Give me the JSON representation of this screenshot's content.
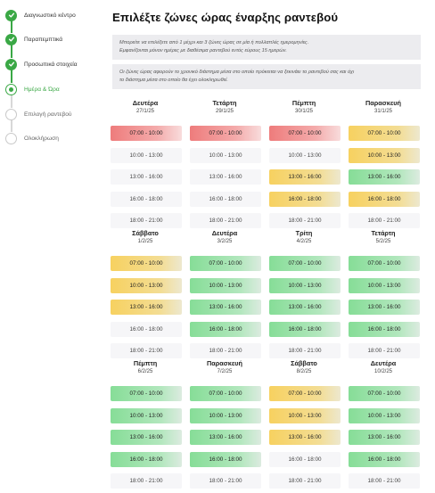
{
  "stepper": {
    "steps": [
      {
        "label": "Διαγνωστικό κέντρο",
        "state": "done"
      },
      {
        "label": "Παραπεμπτικά",
        "state": "done"
      },
      {
        "label": "Προσωπικά στοιχεία",
        "state": "done"
      },
      {
        "label": "Ημέρα & Ώρα",
        "state": "current"
      },
      {
        "label": "Επιλογή ραντεβού",
        "state": "todo"
      },
      {
        "label": "Ολοκλήρωση",
        "state": "todo"
      }
    ]
  },
  "page": {
    "title": "Επιλέξτε ζώνες ώρας έναρξης ραντεβού",
    "info1": [
      "Μπορείτε να επιλέξετε από 1 μέχρι και 3 ζώνες ώρας σε μία ή πολλαπλές ημερομηνίες.",
      "Εμφανίζονται μόνον ημέρες με διαθέσιμα ραντεβού εντός εύρους 15 ημερών."
    ],
    "info2": [
      "Οι ζώνες ώρας αφορούν το χρονικό διάστημα μέσα στο οποίο πρόκειται να ξεκινάει το ραντεβού σας και όχι",
      "το διάστημα μέσα στο οποίο θα έχει ολοκληρωθεί."
    ]
  },
  "status_colors": {
    "red": "#ee7c7c",
    "yellow": "#f7d160",
    "green": "#86dd97",
    "gray": "#f6f6f8",
    "accent": "#3aa845"
  },
  "days": [
    {
      "day": "Δευτέρα",
      "date": "27/1/25",
      "slots": [
        {
          "time": "07:00 - 10:00",
          "status": "red"
        },
        {
          "time": "10:00 - 13:00",
          "status": "gray"
        },
        {
          "time": "13:00 - 16:00",
          "status": "gray"
        },
        {
          "time": "16:00 - 18:00",
          "status": "gray"
        },
        {
          "time": "18:00 - 21:00",
          "status": "gray"
        }
      ]
    },
    {
      "day": "Τετάρτη",
      "date": "29/1/25",
      "slots": [
        {
          "time": "07:00 - 10:00",
          "status": "red"
        },
        {
          "time": "10:00 - 13:00",
          "status": "gray"
        },
        {
          "time": "13:00 - 16:00",
          "status": "gray"
        },
        {
          "time": "16:00 - 18:00",
          "status": "gray"
        },
        {
          "time": "18:00 - 21:00",
          "status": "gray"
        }
      ]
    },
    {
      "day": "Πέμπτη",
      "date": "30/1/25",
      "slots": [
        {
          "time": "07:00 - 10:00",
          "status": "red"
        },
        {
          "time": "10:00 - 13:00",
          "status": "gray"
        },
        {
          "time": "13:00 - 16:00",
          "status": "yellow"
        },
        {
          "time": "16:00 - 18:00",
          "status": "yellow"
        },
        {
          "time": "18:00 - 21:00",
          "status": "gray"
        }
      ]
    },
    {
      "day": "Παρασκευή",
      "date": "31/1/25",
      "slots": [
        {
          "time": "07:00 - 10:00",
          "status": "yellow"
        },
        {
          "time": "10:00 - 13:00",
          "status": "yellow"
        },
        {
          "time": "13:00 - 16:00",
          "status": "green"
        },
        {
          "time": "16:00 - 18:00",
          "status": "yellow"
        },
        {
          "time": "18:00 - 21:00",
          "status": "gray"
        }
      ]
    },
    {
      "day": "Σάββατο",
      "date": "1/2/25",
      "slots": [
        {
          "time": "07:00 - 10:00",
          "status": "yellow"
        },
        {
          "time": "10:00 - 13:00",
          "status": "yellow"
        },
        {
          "time": "13:00 - 16:00",
          "status": "yellow"
        },
        {
          "time": "16:00 - 18:00",
          "status": "gray"
        },
        {
          "time": "18:00 - 21:00",
          "status": "gray"
        }
      ]
    },
    {
      "day": "Δευτέρα",
      "date": "3/2/25",
      "slots": [
        {
          "time": "07:00 - 10:00",
          "status": "green"
        },
        {
          "time": "10:00 - 13:00",
          "status": "green"
        },
        {
          "time": "13:00 - 16:00",
          "status": "green"
        },
        {
          "time": "16:00 - 18:00",
          "status": "green"
        },
        {
          "time": "18:00 - 21:00",
          "status": "gray"
        }
      ]
    },
    {
      "day": "Τρίτη",
      "date": "4/2/25",
      "slots": [
        {
          "time": "07:00 - 10:00",
          "status": "green"
        },
        {
          "time": "10:00 - 13:00",
          "status": "green"
        },
        {
          "time": "13:00 - 16:00",
          "status": "green"
        },
        {
          "time": "16:00 - 18:00",
          "status": "green"
        },
        {
          "time": "18:00 - 21:00",
          "status": "gray"
        }
      ]
    },
    {
      "day": "Τετάρτη",
      "date": "5/2/25",
      "slots": [
        {
          "time": "07:00 - 10:00",
          "status": "green"
        },
        {
          "time": "10:00 - 13:00",
          "status": "green"
        },
        {
          "time": "13:00 - 16:00",
          "status": "green"
        },
        {
          "time": "16:00 - 18:00",
          "status": "green"
        },
        {
          "time": "18:00 - 21:00",
          "status": "gray"
        }
      ]
    },
    {
      "day": "Πέμπτη",
      "date": "6/2/25",
      "slots": [
        {
          "time": "07:00 - 10:00",
          "status": "green"
        },
        {
          "time": "10:00 - 13:00",
          "status": "green"
        },
        {
          "time": "13:00 - 16:00",
          "status": "green"
        },
        {
          "time": "16:00 - 18:00",
          "status": "green"
        },
        {
          "time": "18:00 - 21:00",
          "status": "gray"
        }
      ]
    },
    {
      "day": "Παρασκευή",
      "date": "7/2/25",
      "slots": [
        {
          "time": "07:00 - 10:00",
          "status": "green"
        },
        {
          "time": "10:00 - 13:00",
          "status": "green"
        },
        {
          "time": "13:00 - 16:00",
          "status": "green"
        },
        {
          "time": "16:00 - 18:00",
          "status": "green"
        },
        {
          "time": "18:00 - 21:00",
          "status": "gray"
        }
      ]
    },
    {
      "day": "Σάββατο",
      "date": "8/2/25",
      "slots": [
        {
          "time": "07:00 - 10:00",
          "status": "yellow"
        },
        {
          "time": "10:00 - 13:00",
          "status": "yellow"
        },
        {
          "time": "13:00 - 16:00",
          "status": "yellow"
        },
        {
          "time": "16:00 - 18:00",
          "status": "gray"
        },
        {
          "time": "18:00 - 21:00",
          "status": "gray"
        }
      ]
    },
    {
      "day": "Δευτέρα",
      "date": "10/2/25",
      "slots": [
        {
          "time": "07:00 - 10:00",
          "status": "green"
        },
        {
          "time": "10:00 - 13:00",
          "status": "green"
        },
        {
          "time": "13:00 - 16:00",
          "status": "green"
        },
        {
          "time": "16:00 - 18:00",
          "status": "green"
        },
        {
          "time": "18:00 - 21:00",
          "status": "gray"
        }
      ]
    }
  ]
}
